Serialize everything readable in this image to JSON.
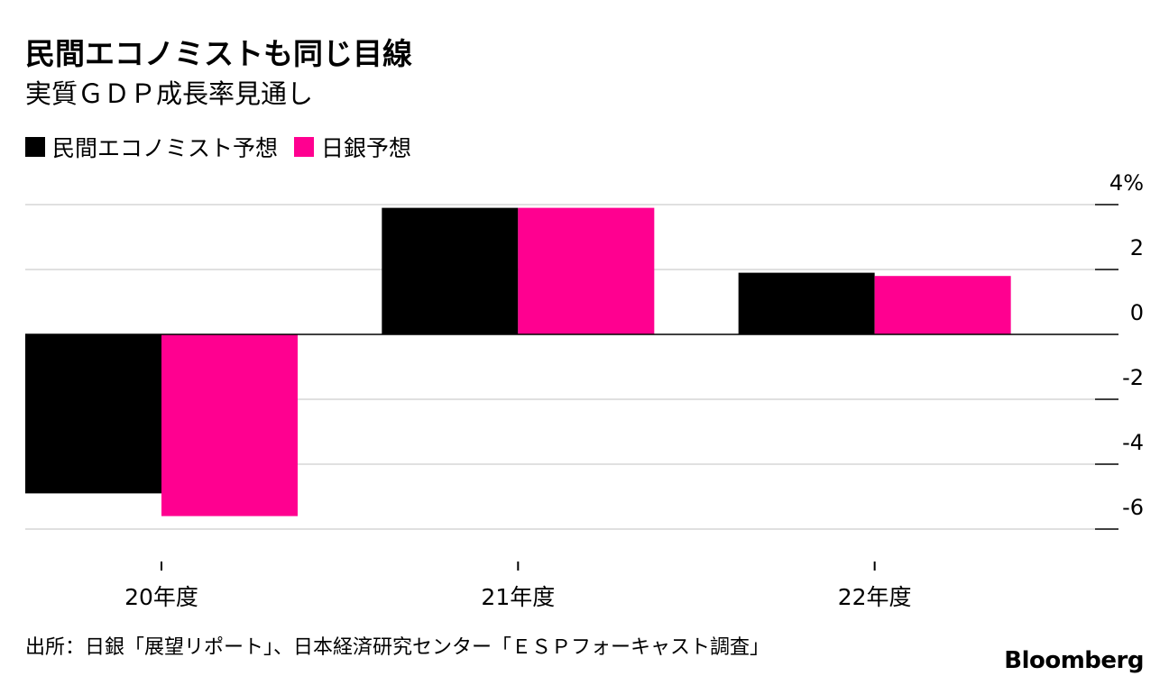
{
  "title": "民間エコノミストも同じ目線",
  "subtitle": "実質ＧＤＰ成長率見通し",
  "source": "出所：日銀「展望リポート」、日本経済研究センター「ＥＳＰフォーキャスト調査」",
  "brand": "Bloomberg",
  "colors": {
    "private": "#000000",
    "boj": "#ff0090",
    "grid": "#e0e0e0"
  },
  "chart_data": {
    "type": "bar",
    "categories": [
      "20年度",
      "21年度",
      "22年度"
    ],
    "series": [
      {
        "name": "民間エコノミスト予想",
        "values": [
          -4.9,
          3.9,
          1.9
        ]
      },
      {
        "name": "日銀予想",
        "values": [
          -5.6,
          3.9,
          1.8
        ]
      }
    ],
    "ylim": [
      -6,
      4
    ],
    "yticks": [
      -6,
      -4,
      -2,
      0,
      2,
      4
    ],
    "ytick_labels": [
      "-6",
      "-4",
      "-2",
      "0",
      "2",
      "4%"
    ],
    "legend_position": "top-left",
    "grid": true
  }
}
